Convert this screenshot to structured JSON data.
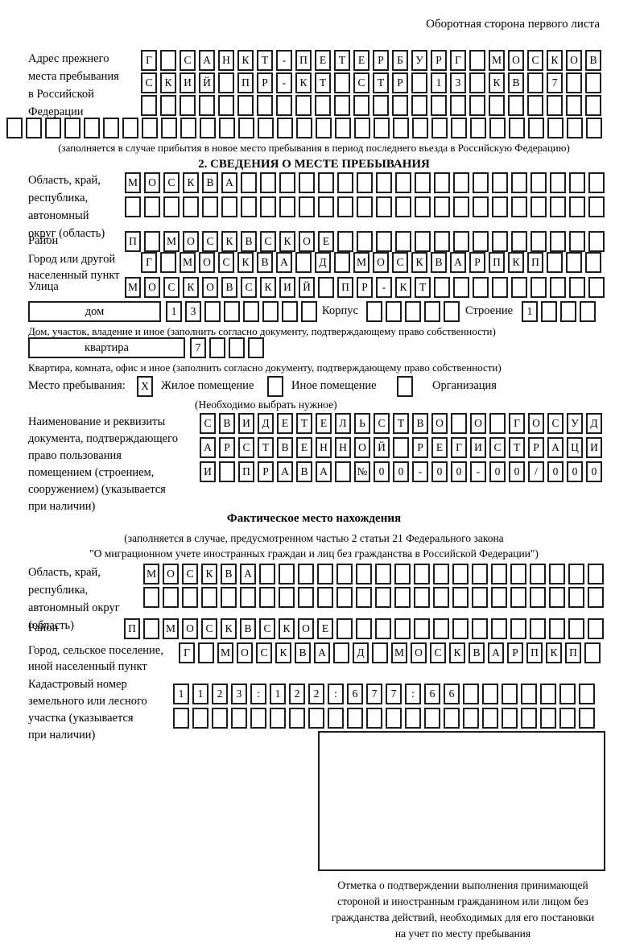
{
  "header": {
    "note": "Оборотная сторона первого листа"
  },
  "prev_address": {
    "label_lines": [
      "Адрес прежнего",
      "места пребывания",
      "в Российской",
      "Федерации"
    ],
    "rows": [
      {
        "chars": "Г САНКТ-ПЕТЕРБУРГ МОСКОВ",
        "count": 24
      },
      {
        "chars": "СКИЙ ПР-КТ СТР 13 КВ 7",
        "count": 24
      },
      {
        "chars": "",
        "count": 24
      },
      {
        "chars": "",
        "count": 31
      }
    ],
    "note": "(заполняется в случае прибытия в новое место пребывания в период последнего въезда в Российскую Федерацию)"
  },
  "section2": {
    "title": "2. СВЕДЕНИЯ О МЕСТЕ ПРЕБЫВАНИЯ",
    "region": {
      "label_lines": [
        "Область, край,",
        "республика,",
        "автономный",
        "округ (область)"
      ],
      "rows": [
        {
          "chars": "МОСКВА",
          "count": 25
        },
        {
          "chars": "",
          "count": 25
        }
      ]
    },
    "district": {
      "label": "Район",
      "row": {
        "chars": "П МОСКВСКОЕ",
        "count": 25
      }
    },
    "city": {
      "label_lines": [
        "Город или другой",
        "населенный пункт"
      ],
      "row": {
        "chars": "Г МОСКВА Д МОСКВАРПКП",
        "count": 24
      }
    },
    "street": {
      "label": "Улица",
      "row": {
        "chars": "МОСКОВСКИЙ ПР-КТ",
        "count": 25
      }
    },
    "house": {
      "type_value": "дом",
      "number": {
        "chars": "13",
        "count": 8
      },
      "korpus_label": "Корпус",
      "korpus": {
        "chars": "",
        "count": 5
      },
      "stroenie_label": "Строение",
      "stroenie": {
        "chars": "1",
        "count": 4
      },
      "caption": "Дом, участок, владение и иное (заполнить согласно документу, подтверждающему право собственности)"
    },
    "apartment": {
      "type_value": "квартира",
      "number": {
        "chars": "7",
        "count": 4
      },
      "caption": "Квартира, комната, офис и иное (заполнить согласно документу, подтверждающему право собственности)"
    },
    "stay_type": {
      "label": "Место пребывания:",
      "options": [
        {
          "label": "Жилое помещение",
          "mark": "X"
        },
        {
          "label": "Иное помещение",
          "mark": ""
        },
        {
          "label": "Организация",
          "mark": ""
        }
      ],
      "note": "(Необходимо выбрать нужное)"
    },
    "document": {
      "label_lines": [
        "Наименование и реквизиты",
        "документа, подтверждающего",
        "право пользования",
        "помещением (строением,",
        "сооружением) (указывается",
        "при наличии)"
      ],
      "rows": [
        {
          "chars": "СВИДЕТЕЛЬСТВО О ГОСУД",
          "count": 21
        },
        {
          "chars": "АРСТВЕННОЙ РЕГИСТРАЦИ",
          "count": 21
        },
        {
          "chars": "И ПРАВА №00-00-00/000",
          "count": 21
        }
      ]
    }
  },
  "actual_location": {
    "title": "Фактическое место нахождения",
    "note_lines": [
      "(заполняется в случае, предусмотренном частью 2 статьи 21 Федерального закона",
      "\"О миграционном учете иностранных граждан и лиц без гражданства в Российской Федерации\")"
    ],
    "region": {
      "label_lines": [
        "Область, край,",
        "республика,",
        "автономный округ",
        "(область)"
      ],
      "rows": [
        {
          "chars": "МОСКВА",
          "count": 24
        },
        {
          "chars": "",
          "count": 24
        }
      ]
    },
    "district": {
      "label": "Район",
      "row": {
        "chars": "П МОСКВСКОЕ",
        "count": 25
      }
    },
    "city": {
      "label_lines": [
        "Город, сельское поселение,",
        "иной населенный пункт"
      ],
      "row": {
        "chars": "Г МОСКВА Д МОСКВАРПКП",
        "count": 22
      }
    },
    "cadastre": {
      "label_lines": [
        "Кадастровый номер",
        "земельного или лесного",
        "участка (указывается",
        "при наличии)"
      ],
      "rows": [
        {
          "chars": "1123:122:677:66",
          "count": 22
        },
        {
          "chars": "",
          "count": 22
        }
      ]
    },
    "stamp_caption_lines": [
      "Отметка о подтверждении выполнения принимающей",
      "стороной и иностранным гражданином или лицом без",
      "гражданства действий, необходимых для его постановки",
      "на учет по месту пребывания"
    ]
  }
}
